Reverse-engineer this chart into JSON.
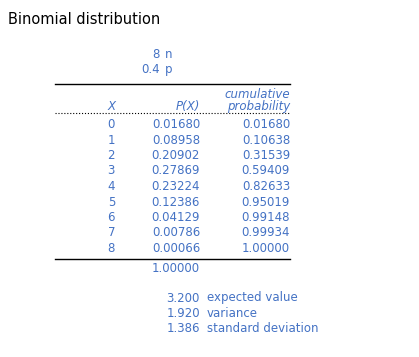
{
  "title": "Binomial distribution",
  "n_value": "8",
  "n_label": "n",
  "p_value": "0.4",
  "p_label": "p",
  "col_headers": [
    "X",
    "P(X)",
    "cumulative",
    "probability"
  ],
  "rows": [
    [
      "0",
      "0.01680",
      "0.01680"
    ],
    [
      "1",
      "0.08958",
      "0.10638"
    ],
    [
      "2",
      "0.20902",
      "0.31539"
    ],
    [
      "3",
      "0.27869",
      "0.59409"
    ],
    [
      "4",
      "0.23224",
      "0.82633"
    ],
    [
      "5",
      "0.12386",
      "0.95019"
    ],
    [
      "6",
      "0.04129",
      "0.99148"
    ],
    [
      "7",
      "0.00786",
      "0.99934"
    ],
    [
      "8",
      "0.00066",
      "1.00000"
    ]
  ],
  "total_label": "1.00000",
  "stats": [
    [
      "3.200",
      "expected value"
    ],
    [
      "1.920",
      "variance"
    ],
    [
      "1.386",
      "standard deviation"
    ]
  ],
  "text_color": "#4472c4",
  "title_color": "#000000",
  "bg_color": "#ffffff",
  "font_size": 8.5,
  "title_font_size": 10.5
}
